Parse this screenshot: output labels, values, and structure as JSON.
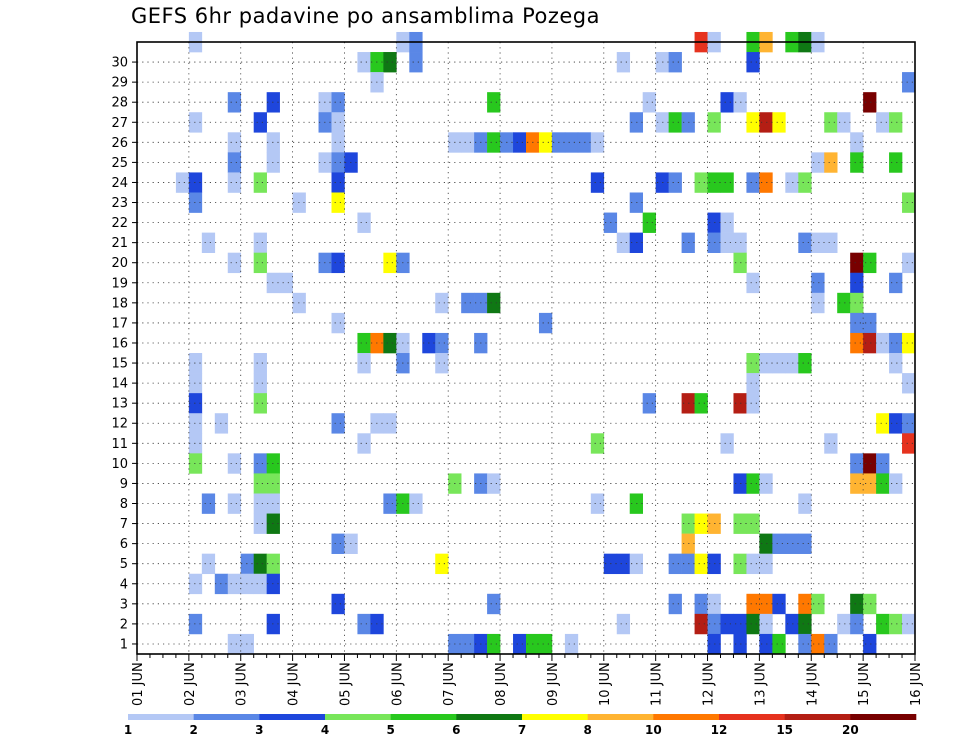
{
  "chart_data": {
    "type": "heatmap",
    "title": "GEFS 6hr padavine po ansamblima Pozega",
    "xlabel": "",
    "ylabel": "",
    "x_tick_labels": [
      "01 JUN",
      "02 JUN",
      "03 JUN",
      "04 JUN",
      "05 JUN",
      "06 JUN",
      "07 JUN",
      "08 JUN",
      "09 JUN",
      "10 JUN",
      "11 JUN",
      "12 JUN",
      "13 JUN",
      "14 JUN",
      "15 JUN",
      "16 JUN"
    ],
    "y_tick_labels": [
      "1",
      "2",
      "3",
      "4",
      "5",
      "6",
      "7",
      "8",
      "9",
      "10",
      "11",
      "12",
      "13",
      "14",
      "15",
      "16",
      "17",
      "18",
      "19",
      "20",
      "21",
      "22",
      "23",
      "24",
      "25",
      "26",
      "27",
      "28",
      "29",
      "30"
    ],
    "time_steps": 60,
    "members": 30,
    "grid": true,
    "legend_position": "bottom",
    "colorbar": {
      "labels": [
        "1",
        "2",
        "3",
        "4",
        "5",
        "6",
        "7",
        "8",
        "10",
        "12",
        "15",
        "20"
      ],
      "colors": [
        "#b4c8f5",
        "#5a87e6",
        "#1e46dc",
        "#78e65a",
        "#28c81e",
        "#0f7814",
        "#ffff00",
        "#ffb432",
        "#ff7800",
        "#e6321e",
        "#b41e14",
        "#780000"
      ]
    },
    "cells": [
      [
        4,
        30,
        1
      ],
      [
        20,
        30,
        1
      ],
      [
        21,
        30,
        2
      ],
      [
        21,
        29,
        2
      ],
      [
        43,
        30,
        10
      ],
      [
        44,
        30,
        1
      ],
      [
        47,
        30,
        5
      ],
      [
        48,
        30,
        8
      ],
      [
        50,
        30,
        5
      ],
      [
        51,
        30,
        6
      ],
      [
        52,
        30,
        1
      ],
      [
        17,
        29,
        1
      ],
      [
        18,
        29,
        5
      ],
      [
        19,
        29,
        6
      ],
      [
        37,
        29,
        1
      ],
      [
        40,
        29,
        1
      ],
      [
        41,
        29,
        2
      ],
      [
        47,
        29,
        3
      ],
      [
        18,
        28,
        1
      ],
      [
        59,
        28,
        2
      ],
      [
        7,
        27,
        2
      ],
      [
        10,
        27,
        3
      ],
      [
        14,
        27,
        1
      ],
      [
        15,
        27,
        2
      ],
      [
        27,
        27,
        5
      ],
      [
        39,
        27,
        1
      ],
      [
        45,
        27,
        3
      ],
      [
        46,
        27,
        1
      ],
      [
        56,
        27,
        12
      ],
      [
        4,
        26,
        1
      ],
      [
        9,
        26,
        3
      ],
      [
        14,
        26,
        2
      ],
      [
        15,
        26,
        1
      ],
      [
        38,
        26,
        2
      ],
      [
        40,
        26,
        1
      ],
      [
        41,
        26,
        5
      ],
      [
        42,
        26,
        2
      ],
      [
        44,
        26,
        4
      ],
      [
        47,
        26,
        7
      ],
      [
        48,
        26,
        11
      ],
      [
        49,
        26,
        7
      ],
      [
        53,
        26,
        4
      ],
      [
        54,
        26,
        1
      ],
      [
        57,
        26,
        1
      ],
      [
        58,
        26,
        4
      ],
      [
        24,
        25,
        1
      ],
      [
        25,
        25,
        1
      ],
      [
        26,
        25,
        2
      ],
      [
        27,
        25,
        5
      ],
      [
        28,
        25,
        2
      ],
      [
        29,
        25,
        3
      ],
      [
        30,
        25,
        9
      ],
      [
        31,
        25,
        7
      ],
      [
        32,
        25,
        2
      ],
      [
        33,
        25,
        2
      ],
      [
        34,
        25,
        2
      ],
      [
        35,
        25,
        1
      ],
      [
        7,
        25,
        1
      ],
      [
        10,
        25,
        1
      ],
      [
        15,
        25,
        1
      ],
      [
        55,
        25,
        1
      ],
      [
        7,
        24,
        2
      ],
      [
        10,
        24,
        1
      ],
      [
        14,
        24,
        1
      ],
      [
        15,
        24,
        2
      ],
      [
        16,
        24,
        3
      ],
      [
        52,
        24,
        1
      ],
      [
        53,
        24,
        8
      ],
      [
        55,
        24,
        5
      ],
      [
        58,
        24,
        5
      ],
      [
        3,
        23,
        1
      ],
      [
        4,
        23,
        3
      ],
      [
        7,
        23,
        1
      ],
      [
        9,
        23,
        4
      ],
      [
        15,
        23,
        3
      ],
      [
        35,
        23,
        3
      ],
      [
        40,
        23,
        3
      ],
      [
        41,
        23,
        2
      ],
      [
        43,
        23,
        4
      ],
      [
        44,
        23,
        5
      ],
      [
        45,
        23,
        5
      ],
      [
        47,
        23,
        2
      ],
      [
        48,
        23,
        9
      ],
      [
        50,
        23,
        1
      ],
      [
        51,
        23,
        4
      ],
      [
        4,
        22,
        2
      ],
      [
        12,
        22,
        1
      ],
      [
        15,
        22,
        7
      ],
      [
        38,
        22,
        2
      ],
      [
        59,
        22,
        4
      ],
      [
        17,
        21,
        1
      ],
      [
        36,
        21,
        2
      ],
      [
        39,
        21,
        5
      ],
      [
        44,
        21,
        3
      ],
      [
        45,
        21,
        1
      ],
      [
        5,
        20,
        1
      ],
      [
        9,
        20,
        1
      ],
      [
        37,
        20,
        1
      ],
      [
        38,
        20,
        3
      ],
      [
        42,
        20,
        2
      ],
      [
        44,
        20,
        2
      ],
      [
        45,
        20,
        1
      ],
      [
        46,
        20,
        1
      ],
      [
        51,
        20,
        2
      ],
      [
        52,
        20,
        1
      ],
      [
        53,
        20,
        1
      ],
      [
        7,
        19,
        1
      ],
      [
        9,
        19,
        4
      ],
      [
        14,
        19,
        2
      ],
      [
        15,
        19,
        3
      ],
      [
        19,
        19,
        7
      ],
      [
        20,
        19,
        2
      ],
      [
        46,
        19,
        4
      ],
      [
        55,
        19,
        12
      ],
      [
        56,
        19,
        5
      ],
      [
        59,
        19,
        1
      ],
      [
        10,
        18,
        1
      ],
      [
        11,
        18,
        1
      ],
      [
        47,
        18,
        1
      ],
      [
        52,
        18,
        2
      ],
      [
        55,
        18,
        3
      ],
      [
        58,
        18,
        2
      ],
      [
        12,
        17,
        1
      ],
      [
        23,
        17,
        1
      ],
      [
        25,
        17,
        2
      ],
      [
        26,
        17,
        2
      ],
      [
        27,
        17,
        6
      ],
      [
        52,
        17,
        1
      ],
      [
        54,
        17,
        5
      ],
      [
        55,
        17,
        4
      ],
      [
        15,
        16,
        1
      ],
      [
        31,
        16,
        2
      ],
      [
        55,
        16,
        2
      ],
      [
        56,
        16,
        2
      ],
      [
        17,
        15,
        5
      ],
      [
        18,
        15,
        9
      ],
      [
        19,
        15,
        6
      ],
      [
        20,
        15,
        1
      ],
      [
        22,
        15,
        3
      ],
      [
        23,
        15,
        2
      ],
      [
        26,
        15,
        2
      ],
      [
        55,
        15,
        9
      ],
      [
        56,
        15,
        11
      ],
      [
        57,
        15,
        1
      ],
      [
        58,
        15,
        2
      ],
      [
        59,
        15,
        7
      ],
      [
        4,
        14,
        1
      ],
      [
        9,
        14,
        1
      ],
      [
        17,
        14,
        1
      ],
      [
        20,
        14,
        2
      ],
      [
        23,
        14,
        1
      ],
      [
        47,
        14,
        4
      ],
      [
        48,
        14,
        1
      ],
      [
        49,
        14,
        1
      ],
      [
        50,
        14,
        1
      ],
      [
        51,
        14,
        5
      ],
      [
        58,
        14,
        1
      ],
      [
        4,
        13,
        1
      ],
      [
        9,
        13,
        1
      ],
      [
        47,
        13,
        1
      ],
      [
        59,
        13,
        1
      ],
      [
        4,
        12,
        3
      ],
      [
        9,
        12,
        4
      ],
      [
        39,
        12,
        2
      ],
      [
        42,
        12,
        11
      ],
      [
        43,
        12,
        5
      ],
      [
        46,
        12,
        11
      ],
      [
        47,
        12,
        1
      ],
      [
        4,
        11,
        1
      ],
      [
        6,
        11,
        1
      ],
      [
        15,
        11,
        2
      ],
      [
        18,
        11,
        1
      ],
      [
        19,
        11,
        1
      ],
      [
        57,
        11,
        7
      ],
      [
        58,
        11,
        3
      ],
      [
        59,
        11,
        2
      ],
      [
        4,
        10,
        1
      ],
      [
        17,
        10,
        1
      ],
      [
        35,
        10,
        4
      ],
      [
        45,
        10,
        1
      ],
      [
        53,
        10,
        1
      ],
      [
        59,
        10,
        10
      ],
      [
        4,
        9,
        4
      ],
      [
        7,
        9,
        1
      ],
      [
        9,
        9,
        2
      ],
      [
        10,
        9,
        5
      ],
      [
        55,
        9,
        2
      ],
      [
        56,
        9,
        12
      ],
      [
        57,
        9,
        2
      ],
      [
        9,
        8,
        4
      ],
      [
        10,
        8,
        4
      ],
      [
        24,
        8,
        4
      ],
      [
        26,
        8,
        2
      ],
      [
        27,
        8,
        1
      ],
      [
        46,
        8,
        3
      ],
      [
        47,
        8,
        5
      ],
      [
        48,
        8,
        1
      ],
      [
        55,
        8,
        8
      ],
      [
        56,
        8,
        8
      ],
      [
        57,
        8,
        5
      ],
      [
        58,
        8,
        1
      ],
      [
        5,
        7,
        2
      ],
      [
        7,
        7,
        1
      ],
      [
        9,
        7,
        1
      ],
      [
        10,
        7,
        1
      ],
      [
        19,
        7,
        2
      ],
      [
        20,
        7,
        5
      ],
      [
        21,
        7,
        1
      ],
      [
        35,
        7,
        1
      ],
      [
        38,
        7,
        5
      ],
      [
        51,
        7,
        1
      ],
      [
        9,
        6,
        1
      ],
      [
        10,
        6,
        6
      ],
      [
        42,
        6,
        4
      ],
      [
        43,
        6,
        7
      ],
      [
        44,
        6,
        8
      ],
      [
        46,
        6,
        4
      ],
      [
        47,
        6,
        4
      ],
      [
        15,
        5,
        2
      ],
      [
        16,
        5,
        1
      ],
      [
        42,
        5,
        8
      ],
      [
        48,
        5,
        6
      ],
      [
        49,
        5,
        2
      ],
      [
        50,
        5,
        2
      ],
      [
        51,
        5,
        2
      ],
      [
        5,
        4,
        1
      ],
      [
        8,
        4,
        2
      ],
      [
        9,
        4,
        6
      ],
      [
        10,
        4,
        4
      ],
      [
        23,
        4,
        7
      ],
      [
        36,
        4,
        3
      ],
      [
        37,
        4,
        3
      ],
      [
        38,
        4,
        1
      ],
      [
        41,
        4,
        2
      ],
      [
        42,
        4,
        2
      ],
      [
        43,
        4,
        7
      ],
      [
        44,
        4,
        3
      ],
      [
        46,
        4,
        4
      ],
      [
        47,
        4,
        1
      ],
      [
        48,
        4,
        1
      ],
      [
        4,
        3,
        1
      ],
      [
        6,
        3,
        2
      ],
      [
        7,
        3,
        1
      ],
      [
        8,
        3,
        1
      ],
      [
        9,
        3,
        1
      ],
      [
        10,
        3,
        3
      ],
      [
        15,
        2,
        3
      ],
      [
        27,
        2,
        2
      ],
      [
        41,
        2,
        2
      ],
      [
        43,
        2,
        2
      ],
      [
        44,
        2,
        1
      ],
      [
        47,
        2,
        9
      ],
      [
        48,
        2,
        9
      ],
      [
        49,
        2,
        3
      ],
      [
        51,
        2,
        9
      ],
      [
        52,
        2,
        4
      ],
      [
        55,
        2,
        6
      ],
      [
        56,
        2,
        4
      ],
      [
        4,
        1,
        2
      ],
      [
        10,
        1,
        3
      ],
      [
        17,
        1,
        2
      ],
      [
        18,
        1,
        3
      ],
      [
        37,
        1,
        1
      ],
      [
        43,
        1,
        11
      ],
      [
        44,
        1,
        2
      ],
      [
        45,
        1,
        3
      ],
      [
        46,
        1,
        3
      ],
      [
        47,
        1,
        6
      ],
      [
        48,
        1,
        1
      ],
      [
        50,
        1,
        3
      ],
      [
        51,
        1,
        6
      ],
      [
        54,
        1,
        1
      ],
      [
        55,
        1,
        2
      ],
      [
        57,
        1,
        5
      ],
      [
        58,
        1,
        4
      ],
      [
        59,
        1,
        1
      ],
      [
        7,
        0,
        1
      ],
      [
        8,
        0,
        1
      ],
      [
        24,
        0,
        2
      ],
      [
        25,
        0,
        2
      ],
      [
        26,
        0,
        3
      ],
      [
        27,
        0,
        5
      ],
      [
        29,
        0,
        3
      ],
      [
        30,
        0,
        5
      ],
      [
        31,
        0,
        5
      ],
      [
        33,
        0,
        1
      ],
      [
        44,
        0,
        3
      ],
      [
        46,
        0,
        3
      ],
      [
        48,
        0,
        3
      ],
      [
        49,
        0,
        5
      ],
      [
        51,
        0,
        2
      ],
      [
        52,
        0,
        9
      ],
      [
        53,
        0,
        2
      ],
      [
        56,
        0,
        3
      ]
    ]
  }
}
